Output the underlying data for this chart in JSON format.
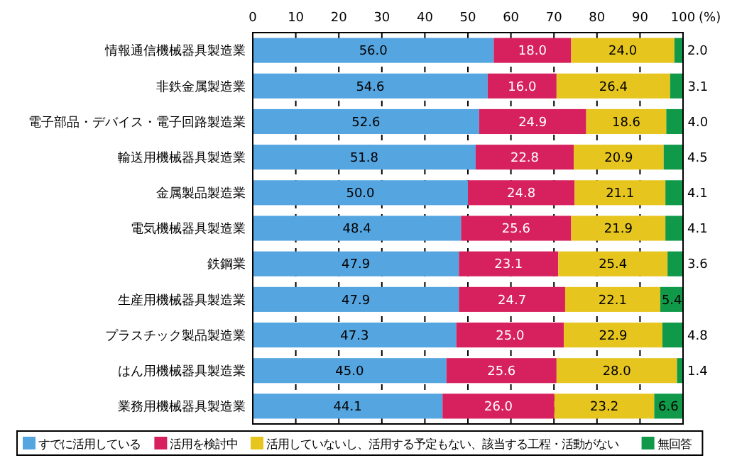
{
  "chart_data": {
    "type": "bar",
    "orientation": "horizontal",
    "stacked": true,
    "grid": "x",
    "legend": "bottom",
    "xlabel": "(%)",
    "categories": [
      "情報通信機械器具製造業",
      "非鉄金属製造業",
      "電子部品・デバイス・電子回路製造業",
      "輸送用機械器具製造業",
      "金属製品製造業",
      "電気機械器具製造業",
      "鉄鋼業",
      "生産用機械器具製造業",
      "プラスチック製品製造業",
      "はん用機械器具製造業",
      "業務用機械器具製造業"
    ],
    "xlim": [
      0,
      100
    ],
    "xticks": [
      0,
      10,
      20,
      30,
      40,
      50,
      60,
      70,
      80,
      90,
      100
    ],
    "series": [
      {
        "name": "すでに活用している",
        "color": "#55a5e0",
        "values": [
          56.0,
          54.6,
          52.6,
          51.8,
          50.0,
          48.4,
          47.9,
          47.9,
          47.3,
          45.0,
          44.1
        ],
        "value_labels": [
          "56.0",
          "54.6",
          "52.6",
          "51.8",
          "50.0",
          "48.4",
          "47.9",
          "47.9",
          "47.3",
          "45.0",
          "44.1"
        ]
      },
      {
        "name": "活用を検討中",
        "color": "#d6215e",
        "values": [
          18.0,
          16.0,
          24.9,
          22.8,
          24.8,
          25.6,
          23.1,
          24.7,
          25.0,
          25.6,
          26.0
        ],
        "value_labels": [
          "18.0",
          "16.0",
          "24.9",
          "22.8",
          "24.8",
          "25.6",
          "23.1",
          "24.7",
          "25.0",
          "25.6",
          "26.0"
        ]
      },
      {
        "name": "活用していないし、活用する予定もない、該当する工程・活動がない",
        "color": "#e6c51f",
        "values": [
          24.0,
          26.4,
          18.6,
          20.9,
          21.1,
          21.9,
          25.4,
          22.1,
          22.9,
          28.0,
          23.2
        ],
        "value_labels": [
          "24.0",
          "26.4",
          "18.6",
          "20.9",
          "21.1",
          "21.9",
          "25.4",
          "22.1",
          "22.9",
          "28.0",
          "23.2"
        ]
      },
      {
        "name": "無回答",
        "color": "#11994a",
        "values": [
          2.0,
          3.1,
          4.0,
          4.5,
          4.1,
          4.1,
          3.6,
          5.4,
          4.8,
          1.4,
          6.6
        ],
        "value_labels": [
          "2.0",
          "3.1",
          "4.0",
          "4.5",
          "4.1",
          "4.1",
          "3.6",
          "5.4",
          "4.8",
          "1.4",
          "6.6"
        ]
      }
    ]
  }
}
